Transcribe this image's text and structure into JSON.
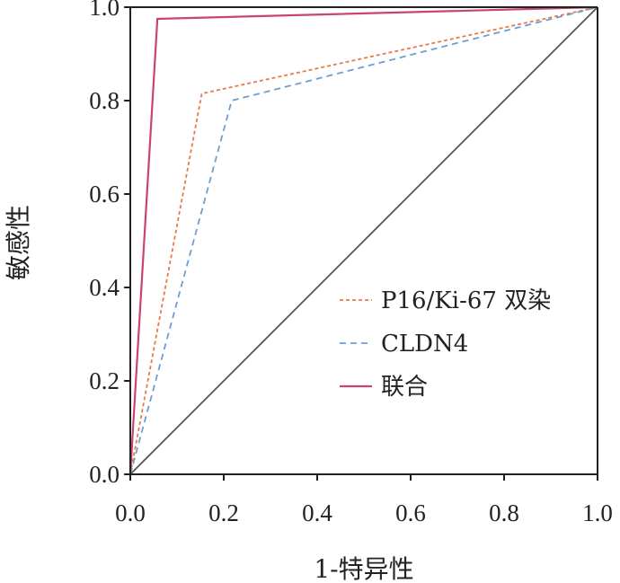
{
  "chart_data": {
    "type": "line",
    "xlabel": "1-特异性",
    "ylabel": "敏感性",
    "xlim": [
      0,
      1
    ],
    "ylim": [
      0,
      1
    ],
    "xticks": [
      "0.0",
      "0.2",
      "0.4",
      "0.6",
      "0.8",
      "1.0"
    ],
    "yticks": [
      "0.0",
      "0.2",
      "0.4",
      "0.6",
      "0.8",
      "1.0"
    ],
    "grid": false,
    "legend_position": "bottom-right",
    "series": [
      {
        "name": "P16/Ki-67 双染",
        "style": "dotted",
        "color": "#e8794a",
        "x": [
          0,
          0.153,
          1
        ],
        "y": [
          0,
          0.815,
          1
        ]
      },
      {
        "name": "CLDN4",
        "style": "dashed",
        "color": "#6a9fd4",
        "x": [
          0,
          0.217,
          1
        ],
        "y": [
          0,
          0.8,
          1
        ]
      },
      {
        "name": "联合",
        "style": "solid",
        "color": "#c8466a",
        "x": [
          0,
          0.058,
          1
        ],
        "y": [
          0,
          0.975,
          1
        ]
      }
    ],
    "reference_line": {
      "x": [
        0,
        1
      ],
      "y": [
        0,
        1
      ],
      "color": "#555555"
    }
  }
}
